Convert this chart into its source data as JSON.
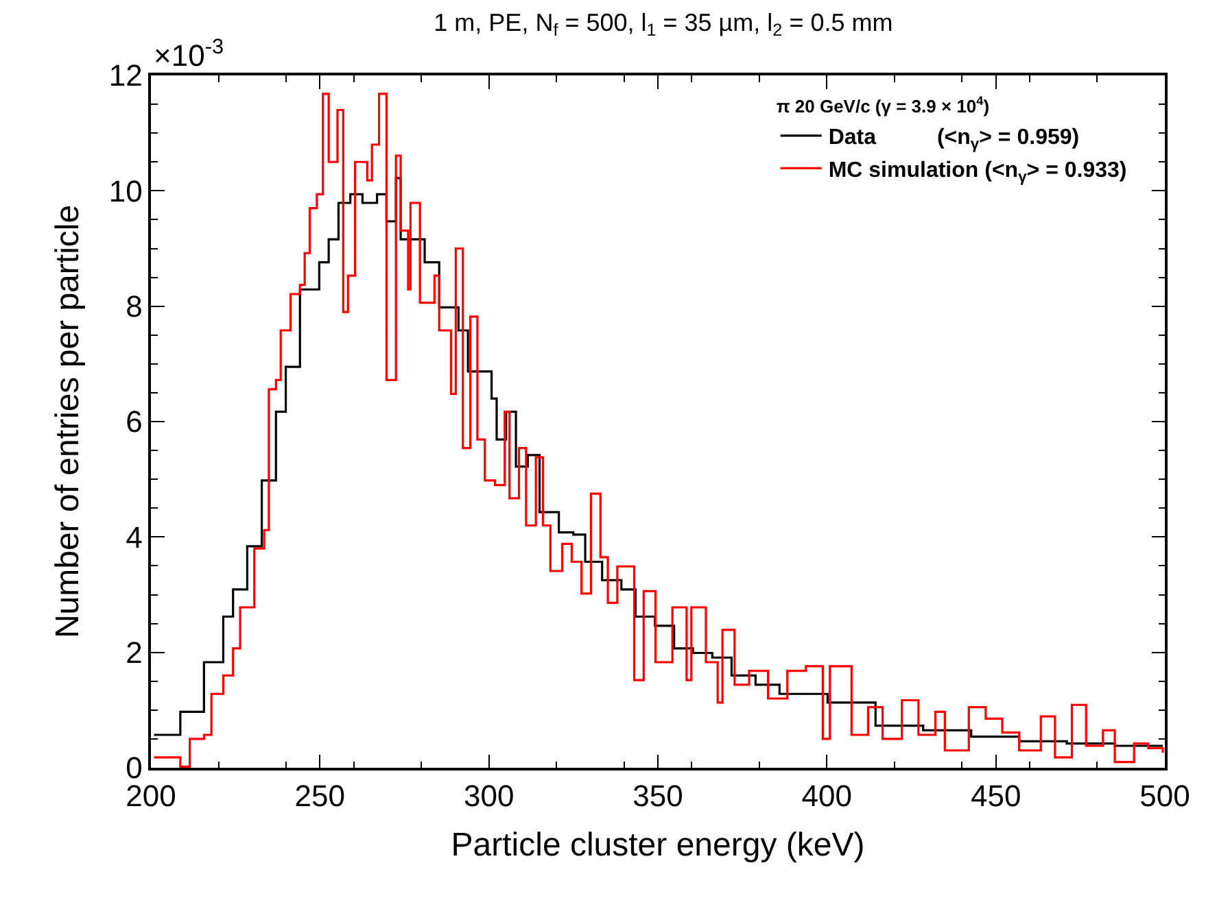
{
  "chart_data": {
    "type": "step",
    "title": "1 m, PE, N$_{f}$ = 500, l$_{1}$ = 35 µm, l$_{2}$ = 0.5 mm",
    "xlabel": "Particle cluster energy (keV)",
    "ylabel": "Number of entries per particle",
    "legend_title": "π 20 GeV/c (γ = 3.9 × 10$^{4}$)",
    "annotations": [
      "×10$^{-3}$"
    ],
    "xlim": [
      200,
      500
    ],
    "xticks": [
      200,
      250,
      300,
      350,
      400,
      450,
      500
    ],
    "ylim": [
      0,
      12
    ],
    "yticks": [
      0,
      2,
      4,
      6,
      8,
      10,
      12
    ],
    "legend": "top right",
    "series": [
      {
        "name": "Data          (<n$_{γ}$> = 0.959)",
        "color": "#000000",
        "x": [
          200.9,
          208.7,
          215.7,
          221.4,
          224.3,
          228.5,
          232.8,
          237,
          239.9,
          244.1,
          249.8,
          252.6,
          255.5,
          259,
          262.6,
          266.9,
          269.7,
          272.5,
          273.9,
          278.2,
          281,
          285.3,
          291,
          293.8,
          300.8,
          302.3,
          305.1,
          308,
          311.5,
          315,
          320.7,
          325,
          328.5,
          333.5,
          339.2,
          343.4,
          349.1,
          354.8,
          360.4,
          366.1,
          371.8,
          378.9,
          386,
          400.2,
          414.4,
          428.5,
          442.7,
          456.9,
          471,
          485.2,
          499.4
        ],
        "values": [
          0.57,
          0.97,
          1.83,
          2.62,
          3.09,
          3.84,
          4.98,
          6.17,
          6.95,
          8.29,
          8.76,
          9.16,
          9.79,
          9.94,
          9.79,
          9.94,
          9.47,
          10.22,
          9.16,
          9.16,
          8.76,
          7.98,
          7.58,
          6.87,
          6.4,
          5.69,
          6.17,
          5.22,
          5.42,
          4.43,
          4.08,
          4.04,
          3.57,
          3.25,
          3.09,
          2.62,
          2.46,
          2.07,
          1.99,
          1.91,
          1.6,
          1.44,
          1.28,
          1.13,
          0.73,
          0.65,
          0.54,
          0.46,
          0.42,
          0.38,
          0.38
        ]
      },
      {
        "name": "MC simulation (<n$_{γ}$> = 0.933)",
        "color": "#ff0000",
        "x": [
          200.9,
          208.7,
          211.5,
          215.7,
          217.9,
          221.4,
          224.3,
          226.4,
          229.2,
          230.6,
          233.5,
          234.9,
          237,
          238.4,
          241.3,
          244.1,
          245.5,
          247,
          249.1,
          250.9,
          252.6,
          255.2,
          256.9,
          258.3,
          260.4,
          264,
          265.4,
          267.5,
          269.7,
          272.5,
          273.9,
          276.1,
          276.8,
          279.6,
          283.9,
          285.3,
          288.8,
          290.2,
          292.3,
          294.5,
          296.6,
          298.8,
          301.8,
          304.7,
          306.1,
          308.9,
          311,
          313.9,
          316,
          318.2,
          321.7,
          324.5,
          327.4,
          330.2,
          333,
          335.2,
          338,
          343,
          345.8,
          349.3,
          354.3,
          358.5,
          359.9,
          364.2,
          367.7,
          369.1,
          372.7,
          377,
          382.6,
          388.3,
          393.8,
          398.8,
          400.9,
          407.3,
          412.2,
          416.5,
          422.2,
          427.1,
          432.1,
          434.9,
          442,
          447,
          451.9,
          456.9,
          463.3,
          467.5,
          472.5,
          476.7,
          481.7,
          485.2,
          490.9,
          495.1,
          499.4
        ],
        "values": [
          0.18,
          0.02,
          0.5,
          0.57,
          1.28,
          1.6,
          2.07,
          2.78,
          2.78,
          3.8,
          4.12,
          6.56,
          6.72,
          7.58,
          8.21,
          8.37,
          8.92,
          9.7,
          9.94,
          11.68,
          10.5,
          11.4,
          7.9,
          8.53,
          10.5,
          10.18,
          10.8,
          11.68,
          6.72,
          10.61,
          9.31,
          8.29,
          9.79,
          8.06,
          8.53,
          7.58,
          6.48,
          9.0,
          5.54,
          7.82,
          5.69,
          4.98,
          4.9,
          6.17,
          4.67,
          5.54,
          4.2,
          5.38,
          4.2,
          3.41,
          3.88,
          3.57,
          3.02,
          4.75,
          3.65,
          2.86,
          3.49,
          1.52,
          3.06,
          1.83,
          2.78,
          1.52,
          2.78,
          1.83,
          1.13,
          2.39,
          1.44,
          1.68,
          1.2,
          1.68,
          1.76,
          0.5,
          1.76,
          0.57,
          1.05,
          0.5,
          1.17,
          0.57,
          0.97,
          0.3,
          1.05,
          0.85,
          0.61,
          0.3,
          0.89,
          0.18,
          1.09,
          0.38,
          0.65,
          0.1,
          0.42,
          0.34,
          0.26
        ]
      }
    ]
  }
}
